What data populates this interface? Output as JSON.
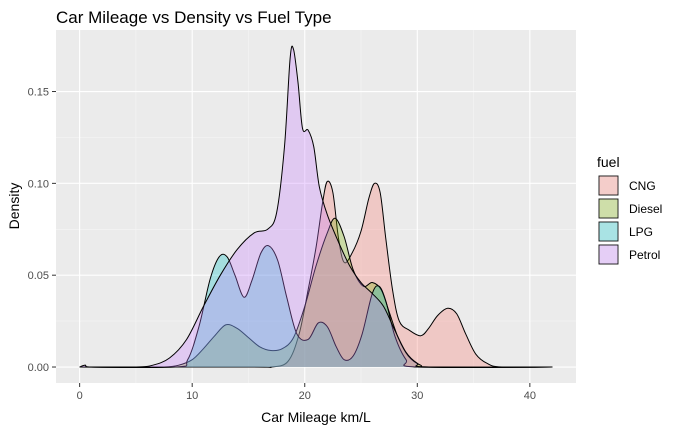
{
  "chart_data": {
    "type": "area",
    "title": "Car Mileage vs Density vs Fuel Type",
    "xlabel": "Car Mileage km/L",
    "ylabel": "Density",
    "xlim": [
      -2.1,
      44.1
    ],
    "ylim": [
      -0.0087,
      0.1835
    ],
    "x_ticks": [
      0,
      10,
      20,
      30,
      40
    ],
    "x_tick_labels": [
      "0",
      "10",
      "20",
      "30",
      "40"
    ],
    "y_ticks": [
      0.0,
      0.05,
      0.1,
      0.15
    ],
    "y_tick_labels": [
      "0.00",
      "0.05",
      "0.10",
      "0.15"
    ],
    "grid": true,
    "legend_title": "fuel",
    "legend_position": "right",
    "series": [
      {
        "name": "CNG",
        "color": "#F8766D",
        "points": [
          [
            15.3,
            0.0
          ],
          [
            17,
            0.0
          ],
          [
            18.5,
            0.003
          ],
          [
            19.5,
            0.018
          ],
          [
            20.3,
            0.042
          ],
          [
            21,
            0.065
          ],
          [
            21.6,
            0.09
          ],
          [
            22,
            0.101
          ],
          [
            22.5,
            0.095
          ],
          [
            23,
            0.07
          ],
          [
            23.5,
            0.057
          ],
          [
            24.2,
            0.062
          ],
          [
            25,
            0.074
          ],
          [
            25.7,
            0.092
          ],
          [
            26.2,
            0.1
          ],
          [
            26.7,
            0.095
          ],
          [
            27.2,
            0.07
          ],
          [
            27.8,
            0.042
          ],
          [
            28.4,
            0.025
          ],
          [
            29.3,
            0.02
          ],
          [
            30.3,
            0.017
          ],
          [
            31,
            0.021
          ],
          [
            31.8,
            0.028
          ],
          [
            32.7,
            0.032
          ],
          [
            33.5,
            0.029
          ],
          [
            34.3,
            0.018
          ],
          [
            35.2,
            0.007
          ],
          [
            36.2,
            0.002
          ],
          [
            37.5,
            0.0
          ]
        ]
      },
      {
        "name": "Diesel",
        "color": "#7CAE00",
        "points": [
          [
            6.2,
            0.0
          ],
          [
            7.5,
            0.0
          ],
          [
            8.8,
            0.001
          ],
          [
            10,
            0.004
          ],
          [
            11,
            0.01
          ],
          [
            12,
            0.017
          ],
          [
            13,
            0.023
          ],
          [
            14,
            0.021
          ],
          [
            15,
            0.016
          ],
          [
            16,
            0.011
          ],
          [
            17,
            0.009
          ],
          [
            18,
            0.01
          ],
          [
            19,
            0.016
          ],
          [
            20,
            0.033
          ],
          [
            21,
            0.055
          ],
          [
            22,
            0.073
          ],
          [
            22.7,
            0.081
          ],
          [
            23.5,
            0.071
          ],
          [
            24.3,
            0.053
          ],
          [
            25.2,
            0.044
          ],
          [
            26,
            0.046
          ],
          [
            26.8,
            0.042
          ],
          [
            27.5,
            0.03
          ],
          [
            28.3,
            0.016
          ],
          [
            29.2,
            0.006
          ],
          [
            30.3,
            0.001
          ],
          [
            31.5,
            0.0
          ]
        ]
      },
      {
        "name": "LPG",
        "color": "#00BFC4",
        "points": [
          [
            8.5,
            0.0
          ],
          [
            9.6,
            0.004
          ],
          [
            10.6,
            0.022
          ],
          [
            11.6,
            0.048
          ],
          [
            12.4,
            0.06
          ],
          [
            13.1,
            0.06
          ],
          [
            13.8,
            0.05
          ],
          [
            14.6,
            0.038
          ],
          [
            15.3,
            0.047
          ],
          [
            16.1,
            0.062
          ],
          [
            16.8,
            0.066
          ],
          [
            17.6,
            0.058
          ],
          [
            18.4,
            0.038
          ],
          [
            19.3,
            0.018
          ],
          [
            20.3,
            0.015
          ],
          [
            21.2,
            0.024
          ],
          [
            22,
            0.022
          ],
          [
            22.8,
            0.011
          ],
          [
            23.5,
            0.004
          ],
          [
            24.3,
            0.006
          ],
          [
            25.1,
            0.018
          ],
          [
            26,
            0.04
          ],
          [
            26.6,
            0.044
          ],
          [
            27.2,
            0.036
          ],
          [
            28,
            0.017
          ],
          [
            29,
            0.004
          ],
          [
            30,
            0.0
          ]
        ]
      },
      {
        "name": "Petrol",
        "color": "#C77CFF",
        "points": [
          [
            -0.2,
            0.0
          ],
          [
            0.0,
            0.002
          ],
          [
            0.5,
            0.001
          ],
          [
            1.0,
            0.0
          ],
          [
            5,
            0.0
          ],
          [
            6.5,
            0.001
          ],
          [
            8,
            0.005
          ],
          [
            9.5,
            0.015
          ],
          [
            11,
            0.033
          ],
          [
            12.5,
            0.05
          ],
          [
            14,
            0.064
          ],
          [
            15.5,
            0.073
          ],
          [
            16.7,
            0.075
          ],
          [
            17.5,
            0.084
          ],
          [
            18.2,
            0.12
          ],
          [
            18.7,
            0.168
          ],
          [
            19.0,
            0.173
          ],
          [
            19.4,
            0.155
          ],
          [
            19.8,
            0.13
          ],
          [
            20.3,
            0.129
          ],
          [
            20.8,
            0.12
          ],
          [
            21.3,
            0.098
          ],
          [
            22,
            0.083
          ],
          [
            23,
            0.068
          ],
          [
            24,
            0.055
          ],
          [
            25,
            0.046
          ],
          [
            26,
            0.04
          ],
          [
            27,
            0.033
          ],
          [
            28,
            0.02
          ],
          [
            29,
            0.008
          ],
          [
            30,
            0.002
          ],
          [
            31,
            0.0
          ]
        ]
      }
    ]
  }
}
